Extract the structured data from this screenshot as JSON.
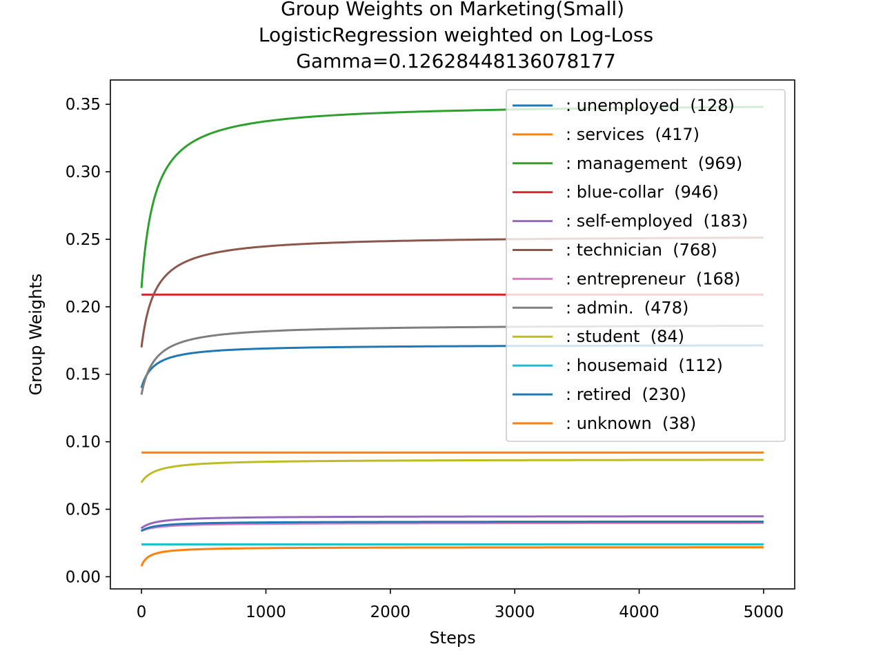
{
  "chart_data": {
    "type": "line",
    "title": [
      "Group Weights on Marketing(Small)",
      "LogisticRegression weighted on Log-Loss",
      "Gamma=0.12628448136078177"
    ],
    "xlabel": "Steps",
    "ylabel": "Group Weights",
    "xlim": [
      -250,
      5250
    ],
    "ylim": [
      -0.009,
      0.368
    ],
    "xticks": [
      0,
      1000,
      2000,
      3000,
      4000,
      5000
    ],
    "xtick_labels": [
      "0",
      "1000",
      "2000",
      "3000",
      "4000",
      "5000"
    ],
    "yticks": [
      0.0,
      0.05,
      0.1,
      0.15,
      0.2,
      0.25,
      0.3,
      0.35
    ],
    "ytick_labels": [
      "0.00",
      "0.05",
      "0.10",
      "0.15",
      "0.20",
      "0.25",
      "0.30",
      "0.35"
    ],
    "grid": false,
    "legend_position": "top-right",
    "x_max": 5000,
    "series": [
      {
        "name": ": unemployed  (128)",
        "color": "#1f77b4",
        "start": 0.14,
        "final": 0.172,
        "tau": 100
      },
      {
        "name": ": services  (417)",
        "color": "#ff7f0e",
        "start": 0.092,
        "final": 0.092,
        "tau": 1
      },
      {
        "name": ": management  (969)",
        "color": "#2ca02c",
        "start": 0.214,
        "final": 0.351,
        "tau": 110
      },
      {
        "name": ": blue-collar  (946)",
        "color": "#d62728",
        "start": 0.209,
        "final": 0.209,
        "tau": 1
      },
      {
        "name": ": self-employed  (183)",
        "color": "#9467bd",
        "start": 0.036,
        "final": 0.045,
        "tau": 120
      },
      {
        "name": ": technician  (768)",
        "color": "#8c564b",
        "start": 0.17,
        "final": 0.253,
        "tau": 110
      },
      {
        "name": ": entrepreneur  (168)",
        "color": "#e377c2",
        "start": 0.034,
        "final": 0.04,
        "tau": 150
      },
      {
        "name": ": admin.  (478)",
        "color": "#7f7f7f",
        "start": 0.135,
        "final": 0.187,
        "tau": 110
      },
      {
        "name": ": student  (84)",
        "color": "#bcbd22",
        "start": 0.07,
        "final": 0.087,
        "tau": 120
      },
      {
        "name": ": housemaid  (112)",
        "color": "#17becf",
        "start": 0.024,
        "final": 0.024,
        "tau": 1
      },
      {
        "name": ": retired  (230)",
        "color": "#1f77b4",
        "start": 0.034,
        "final": 0.041,
        "tau": 120
      },
      {
        "name": ": unknown  (38)",
        "color": "#ff7f0e",
        "start": 0.008,
        "final": 0.022,
        "tau": 60
      }
    ]
  }
}
